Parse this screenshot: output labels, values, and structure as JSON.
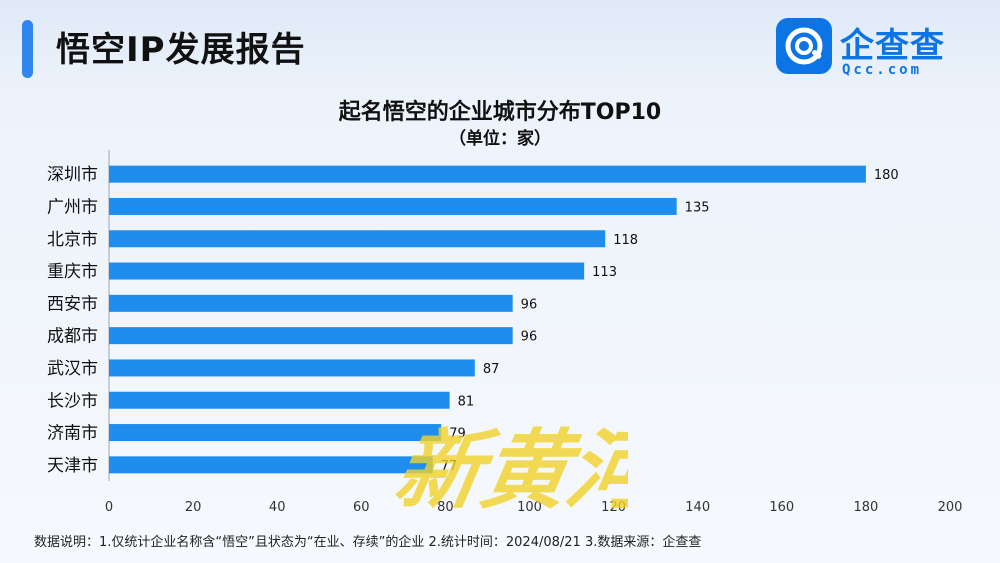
{
  "header": {
    "title": "悟空IP发展报告",
    "brand_name": "企查查",
    "brand_sub": "Qcc.com",
    "accent_color": "#2f86ee",
    "brand_color": "#0d74e6"
  },
  "chart_data": {
    "type": "bar",
    "orientation": "horizontal",
    "title": "起名悟空的企业城市分布TOP10",
    "subtitle": "（单位：家）",
    "categories": [
      "深圳市",
      "广州市",
      "北京市",
      "重庆市",
      "西安市",
      "成都市",
      "武汉市",
      "长沙市",
      "济南市",
      "天津市"
    ],
    "values": [
      180,
      135,
      118,
      113,
      96,
      96,
      87,
      81,
      79,
      77
    ],
    "xlim": [
      0,
      200
    ],
    "x_ticks": [
      0,
      20,
      40,
      60,
      80,
      100,
      120,
      140,
      160,
      180,
      200
    ],
    "grid": false,
    "bar_color": "#1f8ded",
    "data_labels": true
  },
  "footnote": "数据说明：1.仅统计企业名称含“悟空”且状态为“在业、存续”的企业  2.统计时间：2024/08/21   3.数据来源：企查查",
  "watermark": {
    "text": "新黄河",
    "color": "#f2d22a"
  }
}
